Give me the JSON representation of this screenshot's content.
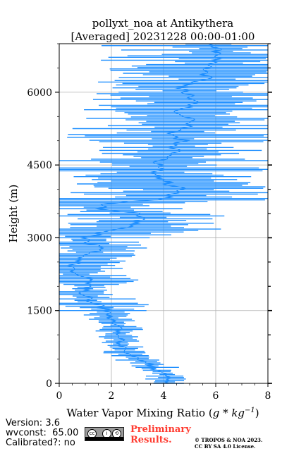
{
  "chart_data": {
    "type": "line",
    "title": "pollyxt_noa at Antikythera",
    "subtitle": "[Averaged] 20231228 00:00-01:00",
    "xlabel_text": "Water Vapor Mixing Ratio (",
    "xlabel_unit": "g * kg",
    "xlabel_exp": "−1",
    "xlabel_close": ")",
    "ylabel": "Height (m)",
    "xlim": [
      0,
      8
    ],
    "ylim": [
      0,
      7000
    ],
    "xticks": [
      "0",
      "2",
      "4",
      "6",
      "8"
    ],
    "yticks": [
      "0",
      "1500",
      "3000",
      "4500",
      "6000"
    ],
    "grid": true,
    "series": [
      {
        "color": "#1f8fff",
        "profile": [
          [
            0,
            4.2
          ],
          [
            100,
            4.3
          ],
          [
            200,
            4.0
          ],
          [
            300,
            3.6
          ],
          [
            400,
            3.4
          ],
          [
            500,
            3.1
          ],
          [
            600,
            2.8
          ],
          [
            700,
            2.5
          ],
          [
            800,
            2.4
          ],
          [
            900,
            2.3
          ],
          [
            1000,
            2.3
          ],
          [
            1100,
            2.2
          ],
          [
            1200,
            2.2
          ],
          [
            1300,
            2.1
          ],
          [
            1400,
            2.0
          ],
          [
            1500,
            1.9
          ],
          [
            1600,
            1.6
          ],
          [
            1700,
            1.3
          ],
          [
            1800,
            1.0
          ],
          [
            1900,
            1.0
          ],
          [
            2000,
            1.2
          ],
          [
            2100,
            1.3
          ],
          [
            2200,
            1.1
          ],
          [
            2300,
            0.7
          ],
          [
            2400,
            0.5
          ],
          [
            2500,
            0.6
          ],
          [
            2600,
            0.7
          ],
          [
            2700,
            1.2
          ],
          [
            2800,
            1.6
          ],
          [
            2900,
            1.1
          ],
          [
            3000,
            1.0
          ],
          [
            3100,
            1.7
          ],
          [
            3200,
            2.5
          ],
          [
            3300,
            2.9
          ],
          [
            3400,
            3.4
          ],
          [
            3500,
            3.0
          ],
          [
            3600,
            1.6
          ],
          [
            3700,
            1.7
          ],
          [
            3800,
            4.0
          ],
          [
            3900,
            4.5
          ],
          [
            4000,
            4.7
          ],
          [
            4100,
            4.2
          ],
          [
            4200,
            4.0
          ],
          [
            4300,
            3.6
          ],
          [
            4400,
            3.9
          ],
          [
            4500,
            3.8
          ],
          [
            4600,
            3.9
          ],
          [
            4700,
            4.3
          ],
          [
            4800,
            4.6
          ],
          [
            4900,
            4.4
          ],
          [
            5000,
            4.8
          ],
          [
            5100,
            4.2
          ],
          [
            5200,
            4.5
          ],
          [
            5300,
            5.0
          ],
          [
            5400,
            5.3
          ],
          [
            5500,
            5.0
          ],
          [
            5600,
            4.6
          ],
          [
            5700,
            4.9
          ],
          [
            5800,
            5.2
          ],
          [
            5900,
            5.1
          ],
          [
            6000,
            4.9
          ],
          [
            6100,
            4.7
          ],
          [
            6200,
            5.3
          ],
          [
            6300,
            5.6
          ],
          [
            6400,
            5.4
          ],
          [
            6500,
            5.8
          ],
          [
            6600,
            6.0
          ],
          [
            6700,
            6.2
          ],
          [
            6800,
            6.0
          ],
          [
            6900,
            6.1
          ],
          [
            7000,
            6.0
          ]
        ],
        "error_bars": true
      }
    ]
  },
  "footer": {
    "version": "Version: 3.6",
    "wvconst": "wvconst:  65.00",
    "calibrated": "Calibrated?: no",
    "preliminary_line1": "Preliminary",
    "preliminary_line2": "Results.",
    "copyright_line1": "© TROPOS & NOA 2023.",
    "copyright_line2": "CC BY SA 4.0 License.",
    "license_badge": "cc-by-sa-badge"
  }
}
